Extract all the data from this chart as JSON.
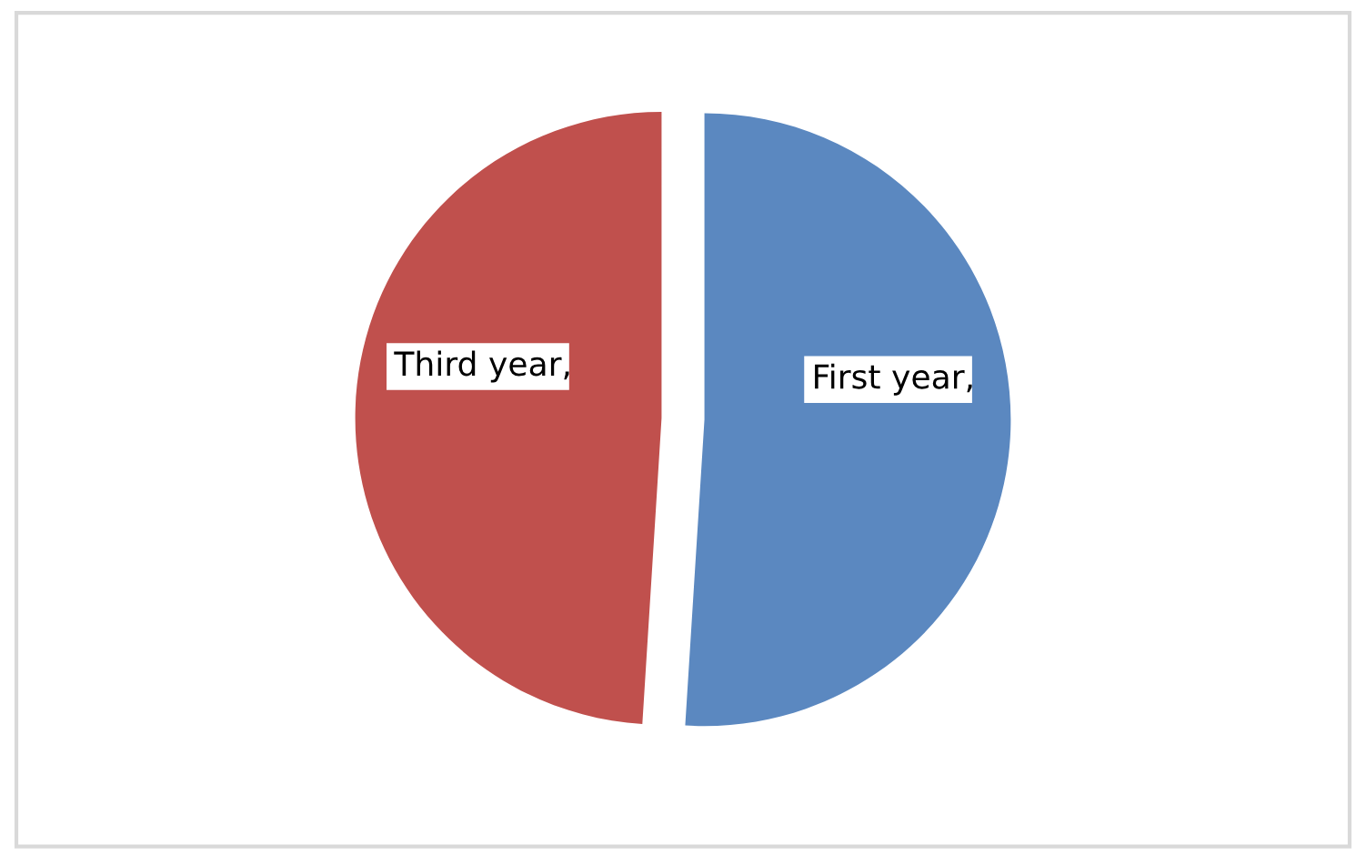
{
  "chart_data": {
    "type": "pie",
    "categories": [
      "First year",
      "Third year"
    ],
    "values": [
      51,
      49
    ],
    "colors": [
      "#5b88c0",
      "#c0504d"
    ],
    "legend": false,
    "annotations": [
      ",",
      ","
    ]
  }
}
